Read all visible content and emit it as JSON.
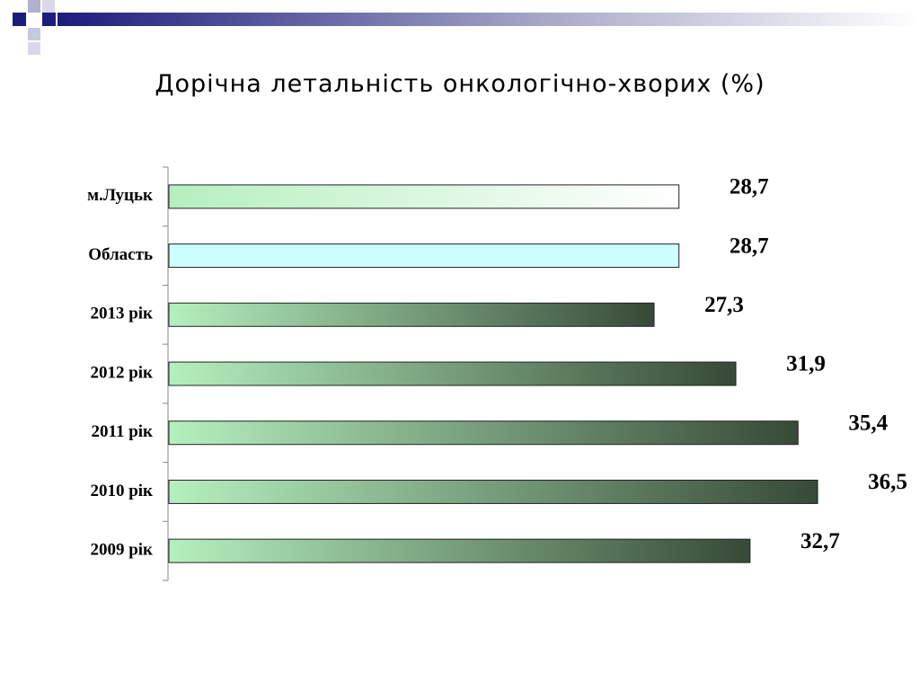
{
  "chart_data": {
    "type": "hbar",
    "title": "Дорічна летальність онкологічно-хворих (%)",
    "categories": [
      "м.Луцьк",
      "Область",
      "2013 рік",
      "2012 рік",
      "2011 рік",
      "2010 рік",
      "2009 рік"
    ],
    "values": [
      28.7,
      28.7,
      27.3,
      31.9,
      35.4,
      36.5,
      32.7
    ],
    "value_labels": [
      "28,7",
      "28,7",
      "27,3",
      "31,9",
      "35,4",
      "36,5",
      "32,7"
    ],
    "colors": [
      "#ffffff",
      "#ccffff",
      "#374a37",
      "#374a37",
      "#374a37",
      "#374a37",
      "#374a37"
    ]
  }
}
